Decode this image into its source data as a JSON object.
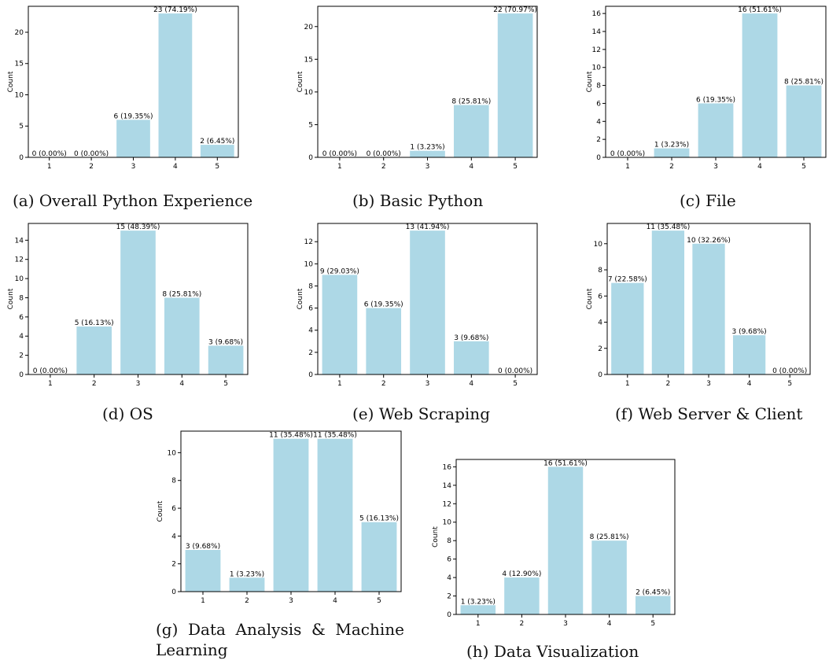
{
  "style": {
    "bar_color": "#add8e6",
    "axis_color": "#000000"
  },
  "chart_data": [
    {
      "type": "bar",
      "caption": "(a) Overall Python Experience",
      "ylabel": "Count",
      "categories": [
        "1",
        "2",
        "3",
        "4",
        "5"
      ],
      "values": [
        0,
        0,
        6,
        23,
        2
      ],
      "bar_labels": [
        "0 (0.00%)",
        "0 (0.00%)",
        "6 (19.35%)",
        "23 (74.19%)",
        "2 (6.45%)"
      ],
      "ylim": [
        0,
        24.15
      ],
      "yticks": [
        0,
        5,
        10,
        15,
        20
      ]
    },
    {
      "type": "bar",
      "caption": "(b) Basic Python",
      "ylabel": "Count",
      "categories": [
        "1",
        "2",
        "3",
        "4",
        "5"
      ],
      "values": [
        0,
        0,
        1,
        8,
        22
      ],
      "bar_labels": [
        "0 (0.00%)",
        "0 (0.00%)",
        "1 (3.23%)",
        "8 (25.81%)",
        "22 (70.97%)"
      ],
      "ylim": [
        0,
        23.1
      ],
      "yticks": [
        0,
        5,
        10,
        15,
        20
      ]
    },
    {
      "type": "bar",
      "caption": "(c) File",
      "ylabel": "Count",
      "categories": [
        "1",
        "2",
        "3",
        "4",
        "5"
      ],
      "values": [
        0,
        1,
        6,
        16,
        8
      ],
      "bar_labels": [
        "0 (0.00%)",
        "1 (3.23%)",
        "6 (19.35%)",
        "16 (51.61%)",
        "8 (25.81%)"
      ],
      "ylim": [
        0,
        16.8
      ],
      "yticks": [
        0,
        2,
        4,
        6,
        8,
        10,
        12,
        14,
        16
      ]
    },
    {
      "type": "bar",
      "caption": "(d) OS",
      "ylabel": "Count",
      "categories": [
        "1",
        "2",
        "3",
        "4",
        "5"
      ],
      "values": [
        0,
        5,
        15,
        8,
        3
      ],
      "bar_labels": [
        "0 (0.00%)",
        "5 (16.13%)",
        "15 (48.39%)",
        "8 (25.81%)",
        "3 (9.68%)"
      ],
      "ylim": [
        0,
        15.75
      ],
      "yticks": [
        0,
        2,
        4,
        6,
        8,
        10,
        12,
        14
      ]
    },
    {
      "type": "bar",
      "caption": "(e) Web Scraping",
      "ylabel": "Count",
      "categories": [
        "1",
        "2",
        "3",
        "4",
        "5"
      ],
      "values": [
        9,
        6,
        13,
        3,
        0
      ],
      "bar_labels": [
        "9 (29.03%)",
        "6 (19.35%)",
        "13 (41.94%)",
        "3 (9.68%)",
        "0 (0.00%)"
      ],
      "ylim": [
        0,
        13.65
      ],
      "yticks": [
        0,
        2,
        4,
        6,
        8,
        10,
        12
      ]
    },
    {
      "type": "bar",
      "caption": "(f) Web Server & Client",
      "ylabel": "Count",
      "categories": [
        "1",
        "2",
        "3",
        "4",
        "5"
      ],
      "values": [
        7,
        11,
        10,
        3,
        0
      ],
      "bar_labels": [
        "7 (22.58%)",
        "11 (35.48%)",
        "10 (32.26%)",
        "3 (9.68%)",
        "0 (0.00%)"
      ],
      "ylim": [
        0,
        11.55
      ],
      "yticks": [
        0,
        2,
        4,
        6,
        8,
        10
      ]
    },
    {
      "type": "bar",
      "caption": "(g) Data Analysis & Machine Learning",
      "ylabel": "Count",
      "categories": [
        "1",
        "2",
        "3",
        "4",
        "5"
      ],
      "values": [
        3,
        1,
        11,
        11,
        5
      ],
      "bar_labels": [
        "3 (9.68%)",
        "1 (3.23%)",
        "11 (35.48%)",
        "11 (35.48%)",
        "5 (16.13%)"
      ],
      "ylim": [
        0,
        11.55
      ],
      "yticks": [
        0,
        2,
        4,
        6,
        8,
        10
      ]
    },
    {
      "type": "bar",
      "caption": "(h) Data Visualization",
      "ylabel": "Count",
      "categories": [
        "1",
        "2",
        "3",
        "4",
        "5"
      ],
      "values": [
        1,
        4,
        16,
        8,
        2
      ],
      "bar_labels": [
        "1 (3.23%)",
        "4 (12.90%)",
        "16 (51.61%)",
        "8 (25.81%)",
        "2 (6.45%)"
      ],
      "ylim": [
        0,
        16.8
      ],
      "yticks": [
        0,
        2,
        4,
        6,
        8,
        10,
        12,
        14,
        16
      ]
    }
  ]
}
